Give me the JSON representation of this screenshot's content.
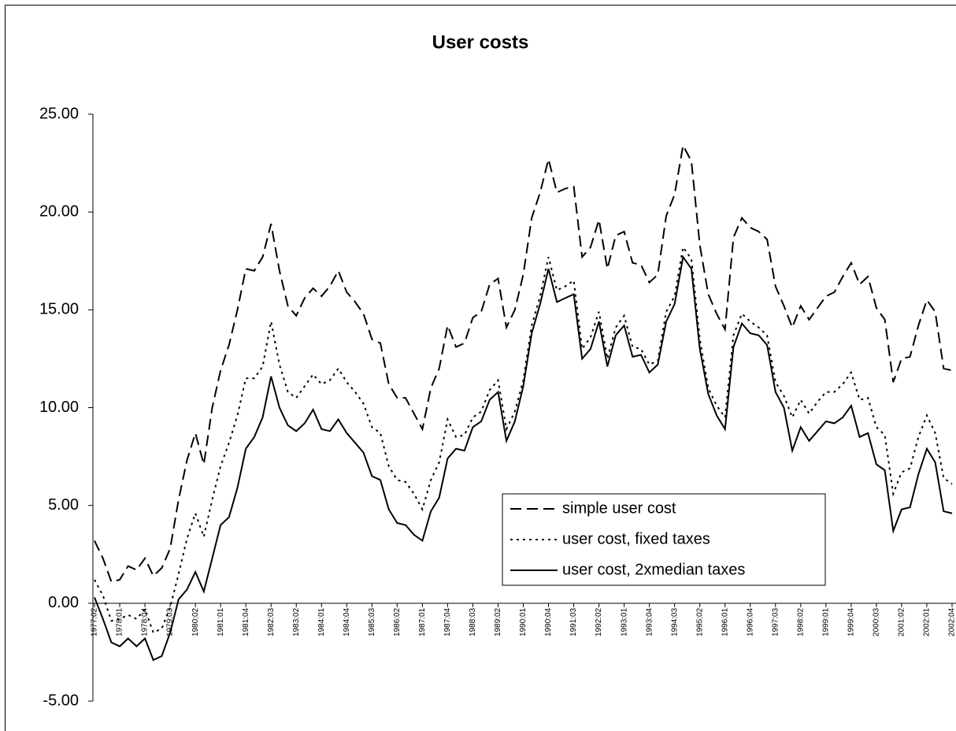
{
  "chart_data": {
    "type": "line",
    "title": "User costs",
    "categories": [
      "1977:02",
      null,
      null,
      "1978:01",
      null,
      null,
      "1978:04",
      null,
      null,
      "1979:03",
      null,
      null,
      "1980:02",
      null,
      null,
      "1981:01",
      null,
      null,
      "1981:04",
      null,
      null,
      "1982:03",
      null,
      null,
      "1983:02",
      null,
      null,
      "1984:01",
      null,
      null,
      "1984:04",
      null,
      null,
      "1985:03",
      null,
      null,
      "1986:02",
      null,
      null,
      "1987:01",
      null,
      null,
      "1987:04",
      null,
      null,
      "1988:03",
      null,
      null,
      "1989:02",
      null,
      null,
      "1990:01",
      null,
      null,
      "1990:04",
      null,
      null,
      "1991:03",
      null,
      null,
      "1992:02",
      null,
      null,
      "1993:01",
      null,
      null,
      "1993:04",
      null,
      null,
      "1994:03",
      null,
      null,
      "1995:02",
      null,
      null,
      "1996:01",
      null,
      null,
      "1996:04",
      null,
      null,
      "1997:03",
      null,
      null,
      "1998:02",
      null,
      null,
      "1999:01",
      null,
      null,
      "1999:04",
      null,
      null,
      "2000:03",
      null,
      null,
      "2001:02",
      null,
      null,
      "2002:01",
      null,
      null,
      "2002:04"
    ],
    "series": [
      {
        "name": "simple user cost",
        "color": "#000000",
        "dash": "dashed",
        "values": [
          3.2,
          2.3,
          1.1,
          1.2,
          1.9,
          1.7,
          2.3,
          1.4,
          1.8,
          2.8,
          5.3,
          7.3,
          8.7,
          7.1,
          10.0,
          11.9,
          13.2,
          15.0,
          17.1,
          17.0,
          17.7,
          19.4,
          17.0,
          15.2,
          14.7,
          15.6,
          16.1,
          15.7,
          16.2,
          17.0,
          15.9,
          15.4,
          14.8,
          13.5,
          13.3,
          11.2,
          10.5,
          10.5,
          9.7,
          8.9,
          11.0,
          12.0,
          14.2,
          13.1,
          13.3,
          14.6,
          14.9,
          16.3,
          16.6,
          14.1,
          15.0,
          16.8,
          19.7,
          21.0,
          22.7,
          21.0,
          21.2,
          21.3,
          17.7,
          18.2,
          19.6,
          17.1,
          18.8,
          19.0,
          17.4,
          17.3,
          16.4,
          16.8,
          19.8,
          20.9,
          23.4,
          22.6,
          18.3,
          15.8,
          14.8,
          14.0,
          18.7,
          19.7,
          19.2,
          19.0,
          18.6,
          16.2,
          15.2,
          14.1,
          15.2,
          14.5,
          15.1,
          15.7,
          15.9,
          16.7,
          17.4,
          16.3,
          16.7,
          15.1,
          14.5,
          11.3,
          12.5,
          12.6,
          14.2,
          15.5,
          14.9,
          12.0,
          11.9
        ]
      },
      {
        "name": "user cost, fixed taxes",
        "color": "#000000",
        "dash": "dotted",
        "values": [
          1.2,
          0.4,
          -0.9,
          -0.8,
          -0.6,
          -0.8,
          -0.3,
          -1.5,
          -1.3,
          -0.2,
          1.5,
          3.3,
          4.6,
          3.4,
          5.3,
          7.0,
          8.2,
          9.6,
          11.5,
          11.5,
          12.1,
          14.4,
          12.2,
          10.8,
          10.5,
          11.1,
          11.7,
          11.2,
          11.4,
          12.0,
          11.3,
          10.8,
          10.2,
          9.0,
          8.7,
          7.0,
          6.3,
          6.2,
          5.6,
          4.8,
          6.3,
          7.2,
          9.4,
          8.5,
          8.6,
          9.5,
          9.8,
          10.9,
          11.4,
          8.9,
          9.8,
          11.4,
          14.2,
          15.7,
          17.7,
          16.0,
          16.2,
          16.5,
          13.0,
          13.6,
          14.9,
          12.5,
          14.1,
          14.7,
          13.1,
          13.0,
          12.2,
          12.4,
          14.9,
          15.7,
          18.2,
          17.6,
          13.5,
          11.0,
          10.1,
          9.5,
          13.7,
          14.8,
          14.4,
          14.1,
          13.7,
          11.3,
          10.6,
          9.5,
          10.4,
          9.7,
          10.3,
          10.8,
          10.8,
          11.2,
          11.8,
          10.4,
          10.5,
          9.0,
          8.6,
          5.6,
          6.7,
          6.9,
          8.5,
          9.6,
          8.7,
          6.4,
          6.1
        ]
      },
      {
        "name": "user cost, 2xmedian taxes",
        "color": "#000000",
        "dash": "solid",
        "values": [
          0.3,
          -0.8,
          -2.0,
          -2.2,
          -1.8,
          -2.2,
          -1.8,
          -2.9,
          -2.7,
          -1.5,
          0.2,
          0.7,
          1.6,
          0.6,
          2.3,
          4.0,
          4.4,
          5.9,
          7.9,
          8.5,
          9.5,
          11.6,
          10.0,
          9.1,
          8.8,
          9.2,
          9.9,
          8.9,
          8.8,
          9.4,
          8.7,
          8.2,
          7.7,
          6.5,
          6.3,
          4.8,
          4.1,
          4.0,
          3.5,
          3.2,
          4.7,
          5.4,
          7.4,
          7.9,
          7.8,
          9.0,
          9.3,
          10.4,
          10.8,
          8.3,
          9.3,
          11.1,
          13.8,
          15.3,
          17.1,
          15.4,
          15.6,
          15.8,
          12.5,
          13.0,
          14.4,
          12.1,
          13.7,
          14.2,
          12.6,
          12.7,
          11.8,
          12.2,
          14.4,
          15.3,
          17.7,
          17.1,
          13.0,
          10.7,
          9.6,
          8.9,
          13.1,
          14.3,
          13.8,
          13.7,
          13.2,
          10.8,
          10.0,
          7.8,
          9.0,
          8.3,
          8.8,
          9.3,
          9.2,
          9.5,
          10.1,
          8.5,
          8.7,
          7.1,
          6.8,
          3.7,
          4.8,
          4.9,
          6.6,
          7.9,
          7.2,
          4.7,
          4.6
        ]
      }
    ],
    "ylim": [
      -5,
      25
    ],
    "yticks": [
      {
        "value": -5,
        "label": "-5.00"
      },
      {
        "value": 0,
        "label": "0.00"
      },
      {
        "value": 5,
        "label": "5.00"
      },
      {
        "value": 10,
        "label": "10.00"
      },
      {
        "value": 15,
        "label": "15.00"
      },
      {
        "value": 20,
        "label": "20.00"
      },
      {
        "value": 25,
        "label": "25.00"
      }
    ],
    "legend": "lower-right",
    "grid": false
  }
}
